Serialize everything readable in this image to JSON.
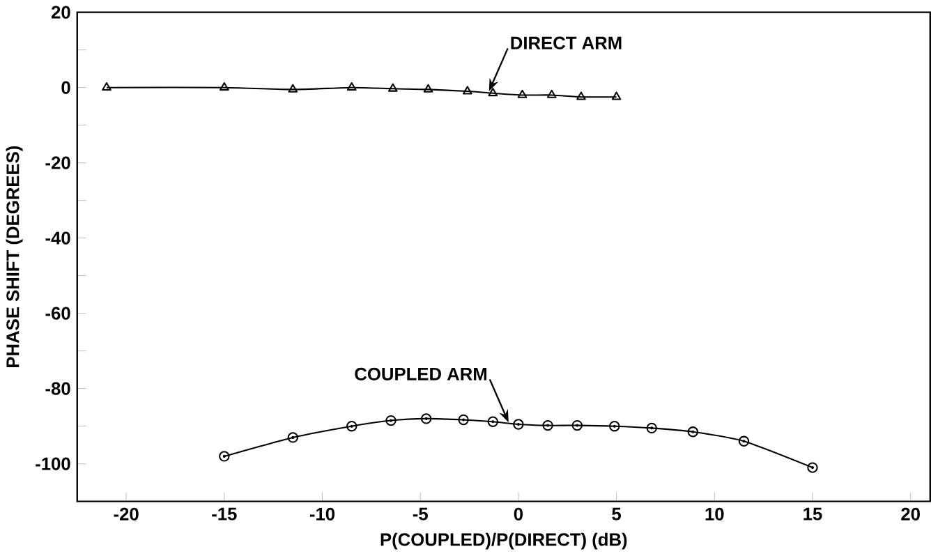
{
  "chart_data": {
    "type": "line",
    "xlabel": "P(COUPLED)/P(DIRECT) (dB)",
    "ylabel": "PHASE SHIFT (DEGREES)",
    "xlim": [
      -22.5,
      21
    ],
    "ylim": [
      -110,
      20
    ],
    "xticks": [
      -20,
      -15,
      -10,
      -5,
      0,
      5,
      10,
      15,
      20
    ],
    "yticks": [
      -100,
      {
        "value": -90,
        "label": null
      },
      -80,
      {
        "value": -70,
        "label": null
      },
      -60,
      {
        "value": -50,
        "label": null
      },
      -40,
      {
        "value": -30,
        "label": null
      },
      -20,
      {
        "value": -10,
        "label": null
      },
      0,
      {
        "value": 10,
        "label": null
      },
      20
    ],
    "grid": false,
    "line_style": "solid",
    "series": [
      {
        "color": "#000000",
        "marker": "triangle",
        "x": [
          -21,
          -15,
          -11.5,
          -8.5,
          -6.4,
          -4.6,
          -2.6,
          -1.3,
          0.2,
          1.7,
          3.2,
          5
        ],
        "values": [
          0,
          0,
          -0.5,
          0,
          -0.3,
          -0.5,
          -1,
          -1.5,
          -2,
          -2,
          -2.5,
          -2.5
        ]
      },
      {
        "color": "#000000",
        "marker": "circle",
        "x": [
          -15,
          -11.5,
          -8.5,
          -6.5,
          -4.7,
          -2.8,
          -1.3,
          0,
          1.5,
          3,
          4.9,
          6.8,
          8.9,
          11.5,
          15
        ],
        "values": [
          -98,
          -93,
          -90,
          -88.5,
          -88,
          -88.3,
          -88.8,
          -89.5,
          -89.8,
          -89.8,
          -90,
          -90.5,
          -91.5,
          -94,
          -101
        ]
      }
    ],
    "annotations": [
      {
        "text": "DIRECT ARM",
        "x": -1.5,
        "y": -1
      },
      {
        "text": "COUPLED ARM",
        "x": -0.5,
        "y": -89
      }
    ]
  }
}
